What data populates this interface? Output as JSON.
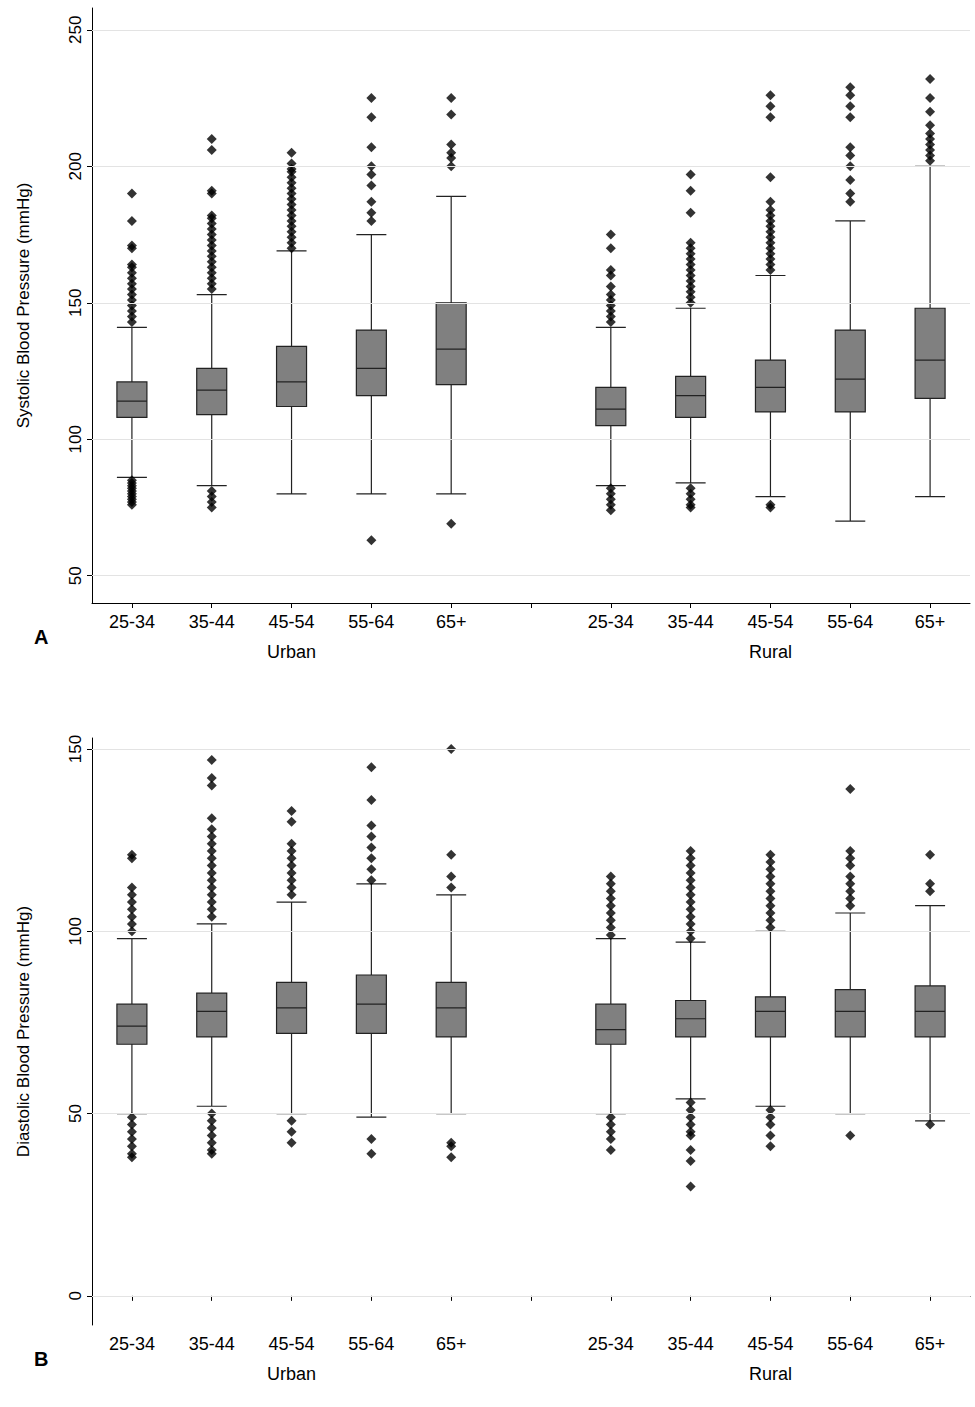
{
  "chart_data": [
    {
      "type": "boxplot",
      "panel": "A",
      "ylabel": "Systolic Blood Pressure (mmHg)",
      "categories": [
        "25-34",
        "35-44",
        "45-54",
        "55-64",
        "65+",
        null,
        "25-34",
        "35-44",
        "45-54",
        "55-64",
        "65+"
      ],
      "groups": [
        "Urban",
        "Rural"
      ],
      "values": [
        [
          86,
          108,
          114,
          121,
          141
        ],
        [
          83,
          109,
          118,
          126,
          153
        ],
        [
          80,
          112,
          121,
          134,
          169
        ],
        [
          80,
          116,
          126,
          140,
          175
        ],
        [
          80,
          120,
          133,
          150,
          189
        ],
        null,
        [
          83,
          105,
          111,
          119,
          141
        ],
        [
          84,
          108,
          116,
          123,
          148
        ],
        [
          79,
          110,
          119,
          129,
          160
        ],
        [
          70,
          110,
          122,
          140,
          180
        ],
        [
          79,
          115,
          129,
          148,
          200
        ]
      ],
      "outliers": [
        [
          143,
          145,
          147,
          149,
          151,
          153,
          155,
          157,
          159,
          161,
          163,
          164,
          170,
          171,
          180,
          190,
          85,
          84,
          83,
          82,
          81,
          80,
          79,
          78,
          77,
          76
        ],
        [
          155,
          157,
          159,
          161,
          163,
          165,
          167,
          169,
          171,
          173,
          175,
          177,
          179,
          181,
          182,
          190,
          191,
          206,
          210,
          81,
          79,
          77,
          75
        ],
        [
          170,
          172,
          174,
          176,
          178,
          180,
          182,
          184,
          186,
          188,
          190,
          192,
          194,
          196,
          198,
          199,
          201,
          205
        ],
        [
          180,
          183,
          187,
          193,
          197,
          200,
          207,
          218,
          225,
          63
        ],
        [
          200,
          203,
          205,
          208,
          219,
          225,
          69
        ],
        null,
        [
          143,
          145,
          147,
          149,
          151,
          153,
          156,
          160,
          162,
          170,
          175,
          82,
          80,
          78,
          76,
          74
        ],
        [
          150,
          152,
          154,
          156,
          158,
          160,
          162,
          164,
          166,
          168,
          170,
          172,
          183,
          191,
          197,
          82,
          80,
          78,
          76,
          75
        ],
        [
          162,
          164,
          166,
          168,
          170,
          172,
          174,
          176,
          178,
          180,
          182,
          184,
          187,
          196,
          218,
          222,
          226,
          76,
          75
        ],
        [
          187,
          190,
          195,
          200,
          204,
          207,
          218,
          222,
          226,
          229
        ],
        [
          202,
          204,
          206,
          208,
          210,
          212,
          215,
          220,
          225,
          232
        ]
      ],
      "color": "#808080",
      "marker": "diamond",
      "ylim": [
        40,
        258
      ],
      "yticks": [
        50,
        100,
        150,
        200,
        250
      ],
      "grid": true
    },
    {
      "type": "boxplot",
      "panel": "B",
      "ylabel": "Diastolic Blood Pressure (mmHg)",
      "categories": [
        "25-34",
        "35-44",
        "45-54",
        "55-64",
        "65+",
        null,
        "25-34",
        "35-44",
        "45-54",
        "55-64",
        "65+"
      ],
      "groups": [
        "Urban",
        "Rural"
      ],
      "values": [
        [
          50,
          69,
          74,
          80,
          98
        ],
        [
          52,
          71,
          78,
          83,
          102
        ],
        [
          50,
          72,
          79,
          86,
          108
        ],
        [
          49,
          72,
          80,
          88,
          113
        ],
        [
          50,
          71,
          79,
          86,
          110
        ],
        null,
        [
          50,
          69,
          73,
          80,
          98
        ],
        [
          54,
          71,
          76,
          81,
          97
        ],
        [
          52,
          71,
          78,
          82,
          100
        ],
        [
          50,
          71,
          78,
          84,
          105
        ],
        [
          48,
          71,
          78,
          85,
          107
        ]
      ],
      "outliers": [
        [
          100,
          102,
          104,
          106,
          108,
          110,
          112,
          120,
          121,
          49,
          47,
          45,
          43,
          41,
          39,
          38
        ],
        [
          104,
          106,
          108,
          110,
          112,
          114,
          116,
          118,
          120,
          122,
          124,
          126,
          128,
          131,
          140,
          142,
          147,
          50,
          48,
          46,
          44,
          42,
          40,
          39
        ],
        [
          110,
          112,
          114,
          116,
          118,
          120,
          122,
          124,
          130,
          133,
          48,
          45,
          42
        ],
        [
          114,
          117,
          120,
          123,
          126,
          129,
          136,
          145,
          43,
          39
        ],
        [
          112,
          115,
          121,
          150,
          42,
          41,
          38
        ],
        null,
        [
          99,
          101,
          103,
          105,
          107,
          109,
          111,
          113,
          115,
          49,
          47,
          45,
          43,
          40
        ],
        [
          98,
          100,
          102,
          104,
          106,
          108,
          110,
          112,
          114,
          116,
          118,
          120,
          122,
          53,
          51,
          49,
          47,
          45,
          44,
          40,
          37,
          30
        ],
        [
          101,
          103,
          105,
          107,
          109,
          111,
          113,
          115,
          117,
          119,
          121,
          51,
          49,
          47,
          44,
          41
        ],
        [
          107,
          109,
          111,
          113,
          115,
          118,
          120,
          122,
          139,
          44
        ],
        [
          111,
          113,
          121,
          47
        ]
      ],
      "color": "#808080",
      "marker": "diamond",
      "ylim": [
        -8,
        153
      ],
      "yticks": [
        0,
        50,
        100,
        150
      ],
      "grid": true
    }
  ]
}
